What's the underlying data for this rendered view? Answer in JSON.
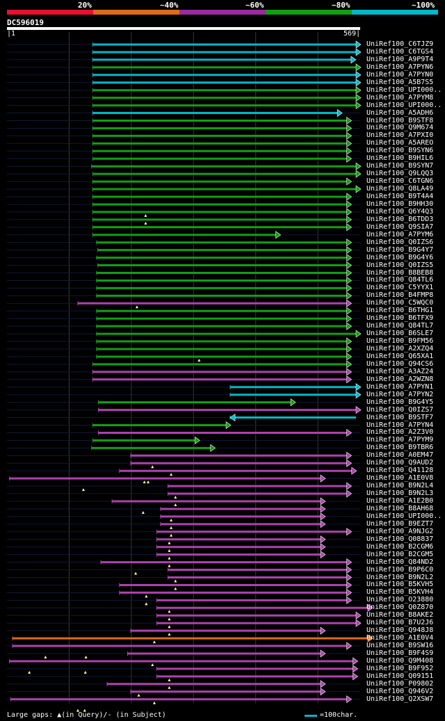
{
  "legend": [
    {
      "label": "20%",
      "color": "#e8102c"
    },
    {
      "label": "~40%",
      "color": "#e06a18"
    },
    {
      "label": "~60%",
      "color": "#9a2aa0"
    },
    {
      "label": "~80%",
      "color": "#10a010"
    },
    {
      "label": "~100%",
      "color": "#00b8c8"
    }
  ],
  "query": {
    "name": "DC596019",
    "start": "1",
    "end": "569",
    "length": 569
  },
  "colors": {
    "cyan": "#00b8c8",
    "green": "#10a010",
    "purple": "#b040b0",
    "orange": "#e06a18",
    "axis": "#ffffff",
    "track": "#101838",
    "grid": "#383838",
    "gap": "#ffffa0"
  },
  "hits": [
    {
      "name": "UniRef100_C6TJZ9",
      "start": 139,
      "end": 569,
      "color": "cyan",
      "arrow": "down"
    },
    {
      "name": "UniRef100_C6TGS4",
      "start": 139,
      "end": 569,
      "color": "cyan",
      "arrow": "down"
    },
    {
      "name": "UniRef100_A9P9T4",
      "start": 139,
      "end": 561,
      "color": "cyan",
      "arrow": "down"
    },
    {
      "name": "UniRef100_A7PYN6",
      "start": 139,
      "end": 569,
      "color": "green",
      "arrow": "down"
    },
    {
      "name": "UniRef100_A7PYN0",
      "start": 139,
      "end": 569,
      "color": "cyan",
      "arrow": "down"
    },
    {
      "name": "UniRef100_A5B7S5",
      "start": 139,
      "end": 569,
      "color": "cyan",
      "arrow": "down"
    },
    {
      "name": "UniRef100_UPI000..",
      "start": 139,
      "end": 569,
      "color": "green",
      "arrow": "down"
    },
    {
      "name": "UniRef100_A7PYM8",
      "start": 139,
      "end": 569,
      "color": "green",
      "arrow": "down"
    },
    {
      "name": "UniRef100_UPI000..",
      "start": 139,
      "end": 569,
      "color": "green",
      "arrow": "down"
    },
    {
      "name": "UniRef100_A5ADH6",
      "start": 139,
      "end": 539,
      "color": "cyan",
      "arrow": "down"
    },
    {
      "name": "UniRef100_B9STF8",
      "start": 139,
      "end": 554,
      "color": "green",
      "arrow": "down"
    },
    {
      "name": "UniRef100_Q9M674",
      "start": 139,
      "end": 554,
      "color": "green",
      "arrow": "down"
    },
    {
      "name": "UniRef100_A7PXI0",
      "start": 139,
      "end": 554,
      "color": "green",
      "arrow": "down"
    },
    {
      "name": "UniRef100_A5AREO",
      "start": 139,
      "end": 554,
      "color": "green",
      "arrow": "down"
    },
    {
      "name": "UniRef100_B9SYN6",
      "start": 139,
      "end": 554,
      "color": "green",
      "arrow": "down"
    },
    {
      "name": "UniRef100_B9HIL6",
      "start": 139,
      "end": 554,
      "color": "green",
      "arrow": "down"
    },
    {
      "name": "UniRef100_B9SYN7",
      "start": 137,
      "end": 569,
      "color": "green",
      "arrow": "down"
    },
    {
      "name": "UniRef100_Q9LQQ3",
      "start": 139,
      "end": 569,
      "color": "green",
      "arrow": "down"
    },
    {
      "name": "UniRef100_C6TGN6",
      "start": 139,
      "end": 554,
      "color": "green",
      "arrow": "down"
    },
    {
      "name": "UniRef100_Q8LA49",
      "start": 139,
      "end": 569,
      "color": "green",
      "arrow": "down"
    },
    {
      "name": "UniRef100_B9T4A4",
      "start": 139,
      "end": 554,
      "color": "green",
      "arrow": "down"
    },
    {
      "name": "UniRef100_B9HH30",
      "start": 139,
      "end": 554,
      "color": "green",
      "arrow": "down"
    },
    {
      "name": "UniRef100_Q6Y4Q3",
      "start": 139,
      "end": 554,
      "color": "green",
      "arrow": "down"
    },
    {
      "name": "UniRef100_B6TDD3",
      "start": 139,
      "end": 554,
      "color": "green",
      "arrow": "down"
    },
    {
      "name": "UniRef100_Q9SIA7",
      "start": 139,
      "end": 554,
      "color": "green",
      "arrow": "down"
    },
    {
      "name": "UniRef100_A7PYM6",
      "start": 139,
      "end": 440,
      "color": "green",
      "arrow": "down"
    },
    {
      "name": "UniRef100_Q0IZS6",
      "start": 145,
      "end": 554,
      "color": "green",
      "arrow": "down"
    },
    {
      "name": "UniRef100_B9G4Y7",
      "start": 147,
      "end": 554,
      "color": "green",
      "arrow": "down"
    },
    {
      "name": "UniRef100_B9G4Y6",
      "start": 145,
      "end": 554,
      "color": "green",
      "arrow": "down"
    },
    {
      "name": "UniRef100_Q0IZS5",
      "start": 147,
      "end": 554,
      "color": "green",
      "arrow": "down"
    },
    {
      "name": "UniRef100_B8BEB8",
      "start": 145,
      "end": 554,
      "color": "green",
      "arrow": "down"
    },
    {
      "name": "UniRef100_Q84TL6",
      "start": 145,
      "end": 554,
      "color": "green",
      "arrow": "down"
    },
    {
      "name": "UniRef100_C5YYX1",
      "start": 145,
      "end": 554,
      "color": "green",
      "arrow": "down"
    },
    {
      "name": "UniRef100_B4FMP8",
      "start": 145,
      "end": 554,
      "color": "green",
      "arrow": "down"
    },
    {
      "name": "UniRef100_C5WQC0",
      "start": 115,
      "end": 554,
      "color": "purple",
      "arrow": "down"
    },
    {
      "name": "UniRef100_B6THG1",
      "start": 145,
      "end": 554,
      "color": "green",
      "arrow": "down"
    },
    {
      "name": "UniRef100_B6TFX9",
      "start": 145,
      "end": 554,
      "color": "green",
      "arrow": "down"
    },
    {
      "name": "UniRef100_Q84TL7",
      "start": 145,
      "end": 554,
      "color": "green",
      "arrow": "down"
    },
    {
      "name": "UniRef100_B6SLE7",
      "start": 145,
      "end": 569,
      "color": "green",
      "arrow": "down"
    },
    {
      "name": "UniRef100_B9FM56",
      "start": 145,
      "end": 554,
      "color": "green",
      "arrow": "down"
    },
    {
      "name": "UniRef100_A2XZQ4",
      "start": 145,
      "end": 554,
      "color": "green",
      "arrow": "down"
    },
    {
      "name": "UniRef100_Q65XA1",
      "start": 145,
      "end": 554,
      "color": "green",
      "arrow": "down"
    },
    {
      "name": "UniRef100_Q94CS6",
      "start": 139,
      "end": 554,
      "color": "green",
      "arrow": "down"
    },
    {
      "name": "UniRef100_A3AZ24",
      "start": 139,
      "end": 554,
      "color": "purple",
      "arrow": "down"
    },
    {
      "name": "UniRef100_A2WZN8",
      "start": 139,
      "end": 554,
      "color": "purple",
      "arrow": "down"
    },
    {
      "name": "UniRef100_A7PYN1",
      "start": 360,
      "end": 569,
      "color": "cyan",
      "arrow": "down"
    },
    {
      "name": "UniRef100_A7PYN2",
      "start": 360,
      "end": 569,
      "color": "cyan",
      "arrow": "down"
    },
    {
      "name": "UniRef100_B9G4Y5",
      "start": 148,
      "end": 464,
      "color": "green",
      "arrow": "down"
    },
    {
      "name": "UniRef100_Q0IZS7",
      "start": 148,
      "end": 569,
      "color": "purple",
      "arrow": "down"
    },
    {
      "name": "UniRef100_B9STF7",
      "start": 360,
      "end": 569,
      "color": "cyan",
      "arrow": "up"
    },
    {
      "name": "UniRef100_A7PYN4",
      "start": 139,
      "end": 360,
      "color": "green",
      "arrow": "down"
    },
    {
      "name": "UniRef100_A2Z3V0",
      "start": 148,
      "end": 554,
      "color": "purple",
      "arrow": "down"
    },
    {
      "name": "UniRef100_A7PYM9",
      "start": 139,
      "end": 310,
      "color": "green",
      "arrow": "down"
    },
    {
      "name": "UniRef100_B9TBR6",
      "start": 137,
      "end": 335,
      "color": "green",
      "arrow": "down"
    },
    {
      "name": "UniRef100_A0EM47",
      "start": 200,
      "end": 554,
      "color": "purple",
      "arrow": "down"
    },
    {
      "name": "UniRef100_Q9AUD2",
      "start": 200,
      "end": 554,
      "color": "purple",
      "arrow": "down"
    },
    {
      "name": "UniRef100_Q41128",
      "start": 182,
      "end": 562,
      "color": "purple",
      "arrow": "down"
    },
    {
      "name": "UniRef100_A1E0V8",
      "start": 5,
      "end": 512,
      "color": "purple",
      "arrow": "down"
    },
    {
      "name": "UniRef100_B9N2L4",
      "start": 260,
      "end": 554,
      "color": "purple",
      "arrow": "down"
    },
    {
      "name": "UniRef100_B9N2L3",
      "start": 260,
      "end": 554,
      "color": "purple",
      "arrow": "down"
    },
    {
      "name": "UniRef100_A1E2B0",
      "start": 170,
      "end": 512,
      "color": "purple",
      "arrow": "down"
    },
    {
      "name": "UniRef100_B8AH68",
      "start": 248,
      "end": 512,
      "color": "purple",
      "arrow": "down"
    },
    {
      "name": "UniRef100_UPI000..",
      "start": 248,
      "end": 512,
      "color": "purple",
      "arrow": "down"
    },
    {
      "name": "UniRef100_B9EZT7",
      "start": 248,
      "end": 512,
      "color": "purple",
      "arrow": "down"
    },
    {
      "name": "UniRef100_A9NJG2",
      "start": 242,
      "end": 554,
      "color": "purple",
      "arrow": "down"
    },
    {
      "name": "UniRef100_Q08837",
      "start": 242,
      "end": 512,
      "color": "purple",
      "arrow": "down"
    },
    {
      "name": "UniRef100_B2CGM6",
      "start": 242,
      "end": 512,
      "color": "purple",
      "arrow": "down"
    },
    {
      "name": "UniRef100_B2CGM5",
      "start": 242,
      "end": 512,
      "color": "purple",
      "arrow": "down"
    },
    {
      "name": "UniRef100_Q84ND2",
      "start": 152,
      "end": 554,
      "color": "purple",
      "arrow": "down"
    },
    {
      "name": "UniRef100_B9P6C0",
      "start": 260,
      "end": 554,
      "color": "purple",
      "arrow": "down"
    },
    {
      "name": "UniRef100_B9N2L2",
      "start": 260,
      "end": 554,
      "color": "purple",
      "arrow": "down"
    },
    {
      "name": "UniRef100_B5KVH5",
      "start": 182,
      "end": 554,
      "color": "purple",
      "arrow": "down"
    },
    {
      "name": "UniRef100_B5KVH4",
      "start": 182,
      "end": 554,
      "color": "purple",
      "arrow": "down"
    },
    {
      "name": "UniRef100_O23880",
      "start": 242,
      "end": 554,
      "color": "purple",
      "arrow": "down"
    },
    {
      "name": "UniRef100_Q0Z870",
      "start": 242,
      "end": 588,
      "color": "purple",
      "arrow": "down"
    },
    {
      "name": "UniRef100_B8AKE2",
      "start": 242,
      "end": 569,
      "color": "purple",
      "arrow": "down"
    },
    {
      "name": "UniRef100_B7U2J6",
      "start": 242,
      "end": 569,
      "color": "purple",
      "arrow": "down"
    },
    {
      "name": "UniRef100_Q948J8",
      "start": 200,
      "end": 512,
      "color": "purple",
      "arrow": "down"
    },
    {
      "name": "UniRef100_A1E0V4",
      "start": 10,
      "end": 588,
      "color": "orange",
      "arrow": "down"
    },
    {
      "name": "UniRef100_B9SW16",
      "start": 10,
      "end": 554,
      "color": "purple",
      "arrow": "down"
    },
    {
      "name": "UniRef100_B9F4S9",
      "start": 195,
      "end": 512,
      "color": "purple",
      "arrow": "down"
    },
    {
      "name": "UniRef100_Q9M408",
      "start": 5,
      "end": 564,
      "color": "purple",
      "arrow": "down"
    },
    {
      "name": "UniRef100_B9F952",
      "start": 242,
      "end": 564,
      "color": "purple",
      "arrow": "down"
    },
    {
      "name": "UniRef100_Q09151",
      "start": 242,
      "end": 564,
      "color": "purple",
      "arrow": "down"
    },
    {
      "name": "UniRef100_P09802",
      "start": 162,
      "end": 512,
      "color": "purple",
      "arrow": "down"
    },
    {
      "name": "UniRef100_Q946V2",
      "start": 200,
      "end": 512,
      "color": "purple",
      "arrow": "down"
    },
    {
      "name": "UniRef100_Q2XSW7",
      "start": 7,
      "end": 554,
      "color": "purple",
      "arrow": "down"
    }
  ],
  "gap_marks": [
    [
      22,
      224
    ],
    [
      23,
      224
    ],
    [
      34,
      210
    ],
    [
      41,
      310
    ],
    [
      55,
      235
    ],
    [
      56,
      265
    ],
    [
      57,
      222
    ],
    [
      57,
      228
    ],
    [
      58,
      124
    ],
    [
      59,
      272
    ],
    [
      60,
      272
    ],
    [
      61,
      220
    ],
    [
      62,
      265
    ],
    [
      63,
      265
    ],
    [
      64,
      265
    ],
    [
      65,
      262
    ],
    [
      66,
      262
    ],
    [
      67,
      262
    ],
    [
      68,
      262
    ],
    [
      69,
      208
    ],
    [
      70,
      272
    ],
    [
      71,
      272
    ],
    [
      72,
      225
    ],
    [
      73,
      225
    ],
    [
      74,
      262
    ],
    [
      75,
      262
    ],
    [
      76,
      262
    ],
    [
      77,
      262
    ],
    [
      78,
      238
    ],
    [
      80,
      63
    ],
    [
      80,
      128
    ],
    [
      81,
      235
    ],
    [
      82,
      37
    ],
    [
      82,
      127
    ],
    [
      83,
      262
    ],
    [
      84,
      262
    ],
    [
      85,
      213
    ],
    [
      86,
      238
    ],
    [
      87,
      115
    ],
    [
      87,
      126
    ]
  ],
  "footer": {
    "text": "Large gaps: ▲(in Query)/- (in Subject)",
    "scale_text": "=100char."
  }
}
